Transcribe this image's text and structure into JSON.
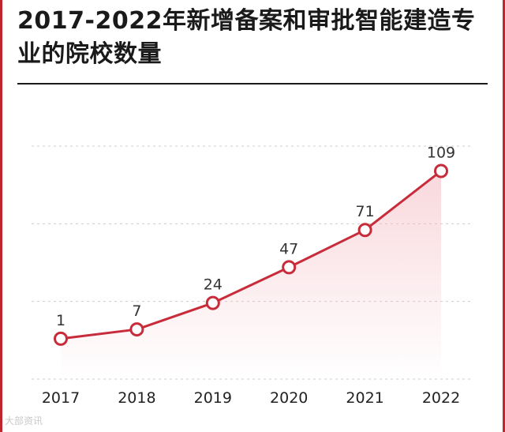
{
  "chart_data": {
    "type": "area",
    "title": "2017-2022年新增备案和审批智能建造专业的院校数量",
    "categories": [
      "2017",
      "2018",
      "2019",
      "2020",
      "2021",
      "2022"
    ],
    "values": [
      1,
      7,
      24,
      47,
      71,
      109
    ],
    "data_labels": [
      "1",
      "7",
      "24",
      "47",
      "71",
      "109"
    ],
    "xlabel": "",
    "ylabel": "",
    "ylim": [
      -25,
      125
    ],
    "grid": true,
    "legend": "none"
  },
  "colors": {
    "accent": "#c0272d",
    "line": "#c82c3a",
    "fill": "#f3b8c0",
    "grid": "#cccccc"
  },
  "watermark": "大部资讯"
}
